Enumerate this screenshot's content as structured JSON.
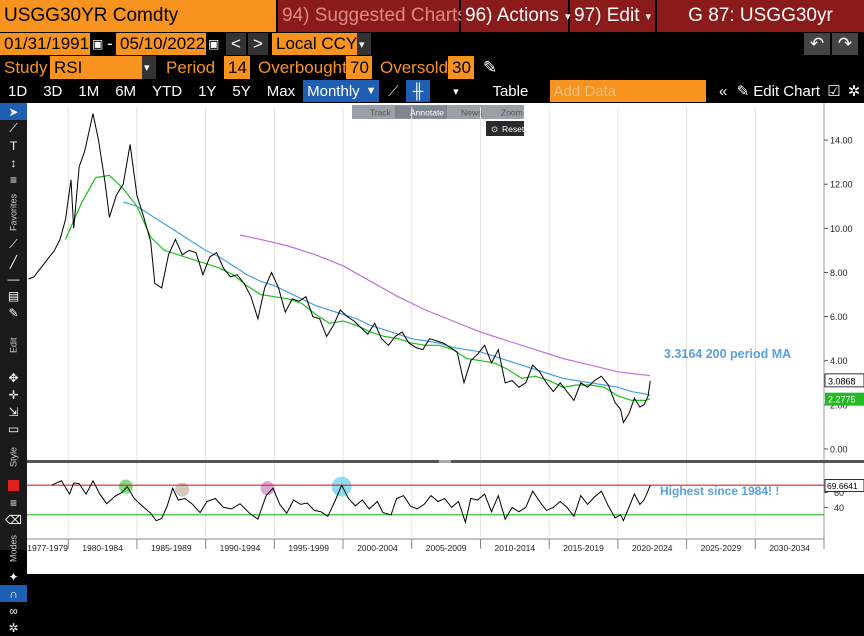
{
  "header": {
    "ticker": "USGG30YR Comdty",
    "menu_94": "94) Suggested Charts",
    "menu_96": "96) Actions",
    "menu_97": "97) Edit",
    "function": "G 87: USGG30yr"
  },
  "dates": {
    "start": "01/31/1991",
    "end": "05/10/2022",
    "currency": "Local CCY"
  },
  "study": {
    "label": "Study",
    "value": "RSI",
    "period_label": "Period",
    "period": "14",
    "overbought_label": "Overbought",
    "overbought": "70",
    "oversold_label": "Oversold",
    "oversold": "30"
  },
  "toolbar": {
    "ranges": [
      "1D",
      "3D",
      "1M",
      "6M",
      "YTD",
      "1Y",
      "5Y",
      "Max"
    ],
    "frequency": "Monthly",
    "table": "Table",
    "add_data_placeholder": "Add Data",
    "edit_chart": "Edit Chart"
  },
  "sub_toolbar": {
    "track": "Track",
    "annotate": "Annotate",
    "news": "News",
    "zoom": "Zoom",
    "reset": "Reset"
  },
  "sidebar": {
    "favorites": "Favorites",
    "edit": "Edit",
    "style": "Style",
    "modes": "Modes"
  },
  "colors": {
    "price": "#000000",
    "ma50": "#22bb22",
    "ma100": "#4a9fe0",
    "ma200": "#c070e0",
    "rsi": "#000000",
    "overbought_line": "#e02020",
    "oversold_line": "#22bb22",
    "annotation": "#5aa0e0"
  },
  "annotations": {
    "ma_label": "3.3164 200 period MA",
    "rsi_label": "Highest since 1984! !"
  },
  "chart_data": {
    "type": "line",
    "price_axis": {
      "ticks": [
        "14.00",
        "12.00",
        "10.00",
        "8.00",
        "6.00",
        "4.00",
        "2.00",
        "0.00"
      ],
      "range": [
        -0.5,
        15.5
      ]
    },
    "rsi_axis": {
      "ticks": [
        "60",
        "40"
      ],
      "range": [
        0,
        100
      ]
    },
    "x_axis": {
      "range": [
        1977,
        2035
      ],
      "labels": [
        "1977-1979",
        "1980-1984",
        "1985-1989",
        "1990-1994",
        "1995-1999",
        "2000-2004",
        "2005-2009",
        "2010-2014",
        "2015-2019",
        "2020-2024",
        "2025-2029",
        "2030-2034"
      ]
    },
    "last_price_label": "3.0868",
    "last_ma_label": "2.2775",
    "last_rsi_label": "69.6641",
    "series": {
      "price": [
        [
          1977.1,
          7.7
        ],
        [
          1977.5,
          7.8
        ],
        [
          1978,
          8.2
        ],
        [
          1978.5,
          8.6
        ],
        [
          1979,
          9.0
        ],
        [
          1979.4,
          9.5
        ],
        [
          1979.8,
          10.4
        ],
        [
          1980.2,
          12.2
        ],
        [
          1980.4,
          10.0
        ],
        [
          1980.8,
          12.8
        ],
        [
          1981.2,
          13.5
        ],
        [
          1981.8,
          15.2
        ],
        [
          1982.2,
          14.0
        ],
        [
          1982.7,
          12.0
        ],
        [
          1983.0,
          10.5
        ],
        [
          1983.5,
          11.5
        ],
        [
          1984.0,
          12.0
        ],
        [
          1984.5,
          13.8
        ],
        [
          1985.0,
          11.5
        ],
        [
          1985.5,
          10.5
        ],
        [
          1986.0,
          9.4
        ],
        [
          1986.3,
          7.5
        ],
        [
          1986.8,
          7.3
        ],
        [
          1987.3,
          8.8
        ],
        [
          1987.8,
          9.5
        ],
        [
          1988.3,
          8.8
        ],
        [
          1988.8,
          9.0
        ],
        [
          1989.3,
          8.9
        ],
        [
          1989.8,
          7.9
        ],
        [
          1990.3,
          8.7
        ],
        [
          1990.8,
          8.9
        ],
        [
          1991.3,
          8.2
        ],
        [
          1991.8,
          7.8
        ],
        [
          1992.3,
          7.9
        ],
        [
          1992.8,
          7.5
        ],
        [
          1993.3,
          6.9
        ],
        [
          1993.8,
          5.9
        ],
        [
          1994.3,
          7.3
        ],
        [
          1994.8,
          8.0
        ],
        [
          1995.3,
          7.3
        ],
        [
          1995.8,
          6.2
        ],
        [
          1996.3,
          6.8
        ],
        [
          1996.8,
          6.7
        ],
        [
          1997.3,
          6.9
        ],
        [
          1997.8,
          6.0
        ],
        [
          1998.3,
          5.9
        ],
        [
          1998.8,
          5.1
        ],
        [
          1999.3,
          5.6
        ],
        [
          1999.8,
          6.3
        ],
        [
          2000.3,
          6.0
        ],
        [
          2000.8,
          5.8
        ],
        [
          2001.3,
          5.5
        ],
        [
          2001.8,
          5.2
        ],
        [
          2002.3,
          5.7
        ],
        [
          2002.8,
          5.0
        ],
        [
          2003.3,
          4.7
        ],
        [
          2003.8,
          5.1
        ],
        [
          2004.3,
          5.3
        ],
        [
          2004.8,
          4.8
        ],
        [
          2005.3,
          4.6
        ],
        [
          2005.8,
          4.5
        ],
        [
          2006.3,
          5.0
        ],
        [
          2006.8,
          4.9
        ],
        [
          2007.3,
          4.8
        ],
        [
          2007.8,
          4.6
        ],
        [
          2008.3,
          4.4
        ],
        [
          2008.8,
          3.0
        ],
        [
          2009.3,
          4.0
        ],
        [
          2009.8,
          4.3
        ],
        [
          2010.3,
          4.7
        ],
        [
          2010.8,
          3.9
        ],
        [
          2011.3,
          4.5
        ],
        [
          2011.8,
          3.0
        ],
        [
          2012.3,
          3.1
        ],
        [
          2012.8,
          2.8
        ],
        [
          2013.3,
          3.0
        ],
        [
          2013.8,
          3.8
        ],
        [
          2014.3,
          3.5
        ],
        [
          2014.8,
          3.0
        ],
        [
          2015.3,
          2.6
        ],
        [
          2015.8,
          3.0
        ],
        [
          2016.3,
          2.6
        ],
        [
          2016.8,
          2.2
        ],
        [
          2017.3,
          3.0
        ],
        [
          2017.8,
          2.8
        ],
        [
          2018.3,
          3.1
        ],
        [
          2018.8,
          3.3
        ],
        [
          2019.3,
          2.9
        ],
        [
          2019.8,
          2.1
        ],
        [
          2020.2,
          1.8
        ],
        [
          2020.4,
          1.2
        ],
        [
          2020.8,
          1.6
        ],
        [
          2021.2,
          2.3
        ],
        [
          2021.6,
          1.9
        ],
        [
          2021.9,
          2.0
        ],
        [
          2022.2,
          2.4
        ],
        [
          2022.35,
          3.09
        ]
      ],
      "ma50": [
        [
          1979.8,
          9.5
        ],
        [
          1981,
          11.2
        ],
        [
          1982,
          12.3
        ],
        [
          1983,
          12.4
        ],
        [
          1984,
          11.8
        ],
        [
          1985,
          11.0
        ],
        [
          1986,
          9.6
        ],
        [
          1987,
          9.0
        ],
        [
          1988,
          8.8
        ],
        [
          1989,
          8.6
        ],
        [
          1990,
          8.4
        ],
        [
          1991,
          8.2
        ],
        [
          1992,
          7.9
        ],
        [
          1993,
          7.4
        ],
        [
          1994,
          7.0
        ],
        [
          1995,
          6.9
        ],
        [
          1996,
          6.8
        ],
        [
          1997,
          6.6
        ],
        [
          1998,
          6.1
        ],
        [
          1999,
          5.7
        ],
        [
          2000,
          5.8
        ],
        [
          2001,
          5.6
        ],
        [
          2002,
          5.3
        ],
        [
          2003,
          5.1
        ],
        [
          2004,
          5.0
        ],
        [
          2005,
          4.8
        ],
        [
          2006,
          4.7
        ],
        [
          2007,
          4.7
        ],
        [
          2008,
          4.5
        ],
        [
          2009,
          4.1
        ],
        [
          2010,
          4.0
        ],
        [
          2011,
          3.9
        ],
        [
          2012,
          3.6
        ],
        [
          2013,
          3.2
        ],
        [
          2014,
          3.3
        ],
        [
          2015,
          3.1
        ],
        [
          2016,
          2.8
        ],
        [
          2017,
          2.9
        ],
        [
          2018,
          2.9
        ],
        [
          2019,
          2.8
        ],
        [
          2020,
          2.4
        ],
        [
          2021,
          2.2
        ],
        [
          2022,
          2.2
        ],
        [
          2022.35,
          2.28
        ]
      ],
      "ma100": [
        [
          1984,
          11.2
        ],
        [
          1985,
          11.0
        ],
        [
          1986,
          10.6
        ],
        [
          1987,
          10.2
        ],
        [
          1988,
          9.8
        ],
        [
          1989,
          9.4
        ],
        [
          1990,
          9.0
        ],
        [
          1991,
          8.7
        ],
        [
          1992,
          8.3
        ],
        [
          1993,
          7.9
        ],
        [
          1994,
          7.6
        ],
        [
          1995,
          7.4
        ],
        [
          1996,
          7.1
        ],
        [
          1997,
          6.8
        ],
        [
          1998,
          6.5
        ],
        [
          1999,
          6.3
        ],
        [
          2000,
          6.1
        ],
        [
          2001,
          5.9
        ],
        [
          2002,
          5.6
        ],
        [
          2003,
          5.4
        ],
        [
          2004,
          5.2
        ],
        [
          2005,
          5.0
        ],
        [
          2006,
          4.9
        ],
        [
          2007,
          4.8
        ],
        [
          2008,
          4.6
        ],
        [
          2009,
          4.5
        ],
        [
          2010,
          4.4
        ],
        [
          2011,
          4.2
        ],
        [
          2012,
          4.0
        ],
        [
          2013,
          3.8
        ],
        [
          2014,
          3.6
        ],
        [
          2015,
          3.4
        ],
        [
          2016,
          3.2
        ],
        [
          2017,
          3.1
        ],
        [
          2018,
          3.0
        ],
        [
          2019,
          2.9
        ],
        [
          2020,
          2.8
        ],
        [
          2021,
          2.6
        ],
        [
          2022.35,
          2.45
        ]
      ],
      "ma200": [
        [
          1992.5,
          9.7
        ],
        [
          1994,
          9.5
        ],
        [
          1996,
          9.2
        ],
        [
          1998,
          8.8
        ],
        [
          2000,
          8.3
        ],
        [
          2002,
          7.6
        ],
        [
          2004,
          6.9
        ],
        [
          2006,
          6.3
        ],
        [
          2008,
          5.8
        ],
        [
          2010,
          5.3
        ],
        [
          2012,
          4.9
        ],
        [
          2014,
          4.5
        ],
        [
          2016,
          4.1
        ],
        [
          2018,
          3.8
        ],
        [
          2020,
          3.5
        ],
        [
          2022.35,
          3.32
        ]
      ],
      "rsi": [
        [
          1978.8,
          70
        ],
        [
          1979.5,
          76
        ],
        [
          1980.1,
          58
        ],
        [
          1980.4,
          73
        ],
        [
          1980.8,
          72
        ],
        [
          1981.3,
          58
        ],
        [
          1981.8,
          76
        ],
        [
          1982.3,
          58
        ],
        [
          1982.8,
          45
        ],
        [
          1983.4,
          55
        ],
        [
          1983.9,
          60
        ],
        [
          1984.3,
          68
        ],
        [
          1984.8,
          52
        ],
        [
          1985.5,
          40
        ],
        [
          1986.0,
          32
        ],
        [
          1986.4,
          22
        ],
        [
          1986.8,
          25
        ],
        [
          1987.2,
          42
        ],
        [
          1987.6,
          66
        ],
        [
          1988.0,
          50
        ],
        [
          1988.5,
          52
        ],
        [
          1989.0,
          45
        ],
        [
          1989.6,
          33
        ],
        [
          1990.1,
          48
        ],
        [
          1990.7,
          52
        ],
        [
          1991.3,
          40
        ],
        [
          1991.9,
          38
        ],
        [
          1992.5,
          45
        ],
        [
          1993.2,
          32
        ],
        [
          1993.8,
          24
        ],
        [
          1994.4,
          56
        ],
        [
          1994.9,
          66
        ],
        [
          1995.4,
          44
        ],
        [
          1995.9,
          32
        ],
        [
          1996.4,
          50
        ],
        [
          1996.9,
          44
        ],
        [
          1997.4,
          46
        ],
        [
          1997.9,
          36
        ],
        [
          1998.4,
          34
        ],
        [
          1998.9,
          28
        ],
        [
          1999.4,
          48
        ],
        [
          1999.9,
          70
        ],
        [
          2000.4,
          52
        ],
        [
          2000.9,
          42
        ],
        [
          2001.4,
          50
        ],
        [
          2001.9,
          38
        ],
        [
          2002.5,
          48
        ],
        [
          2002.9,
          33
        ],
        [
          2003.5,
          30
        ],
        [
          2003.9,
          52
        ],
        [
          2004.4,
          56
        ],
        [
          2004.9,
          42
        ],
        [
          2005.4,
          38
        ],
        [
          2005.9,
          44
        ],
        [
          2006.4,
          56
        ],
        [
          2006.9,
          48
        ],
        [
          2007.4,
          52
        ],
        [
          2007.9,
          40
        ],
        [
          2008.4,
          48
        ],
        [
          2008.9,
          20
        ],
        [
          2009.3,
          52
        ],
        [
          2009.8,
          50
        ],
        [
          2010.3,
          58
        ],
        [
          2010.8,
          34
        ],
        [
          2011.3,
          56
        ],
        [
          2011.8,
          24
        ],
        [
          2012.3,
          40
        ],
        [
          2012.8,
          34
        ],
        [
          2013.3,
          40
        ],
        [
          2013.8,
          62
        ],
        [
          2014.3,
          48
        ],
        [
          2014.8,
          36
        ],
        [
          2015.3,
          40
        ],
        [
          2015.8,
          48
        ],
        [
          2016.3,
          40
        ],
        [
          2016.8,
          28
        ],
        [
          2017.3,
          56
        ],
        [
          2017.8,
          44
        ],
        [
          2018.3,
          54
        ],
        [
          2018.8,
          62
        ],
        [
          2019.3,
          42
        ],
        [
          2019.8,
          26
        ],
        [
          2020.2,
          30
        ],
        [
          2020.4,
          22
        ],
        [
          2020.8,
          40
        ],
        [
          2021.2,
          58
        ],
        [
          2021.6,
          44
        ],
        [
          2021.9,
          50
        ],
        [
          2022.1,
          58
        ],
        [
          2022.35,
          69.7
        ]
      ]
    },
    "highlights": [
      {
        "x": 1984.2,
        "y": 68,
        "color": "#66d466"
      },
      {
        "x": 1988.3,
        "y": 64,
        "color": "#c8c0b0"
      },
      {
        "x": 1994.5,
        "y": 66,
        "color": "#d49ad0"
      },
      {
        "x": 1999.9,
        "y": 68,
        "color": "#7ad8f0"
      }
    ],
    "overbought": 70,
    "oversold": 30
  }
}
